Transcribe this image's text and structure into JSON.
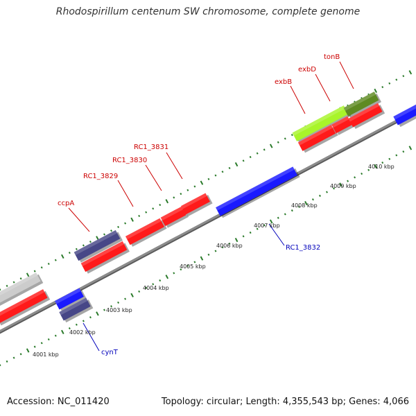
{
  "title": "Rhodospirillum centenum SW chromosome, complete genome",
  "footer": {
    "accession": "Accession: NC_011420",
    "stats": "Topology: circular; Length: 4,355,543 bp; Genes: 4,066"
  },
  "colors": {
    "backbone": "#8c8c8c",
    "tick": "#2a7a2a",
    "forward_label": "#cc0000",
    "reverse_label": "#0000bb",
    "red_feature": "#ff1a1a",
    "blue_feature": "#1a1aff",
    "navy_feature": "#474787",
    "lime_feature": "#a8f52a",
    "olive_feature": "#5e8a22",
    "grey_feature": "#cccccc"
  },
  "scale_labels": [
    {
      "text": "4001 kbp",
      "kbp": 4001
    },
    {
      "text": "4002 kbp",
      "kbp": 4002
    },
    {
      "text": "4003 kbp",
      "kbp": 4003
    },
    {
      "text": "4004 kbp",
      "kbp": 4004
    },
    {
      "text": "4005 kbp",
      "kbp": 4005
    },
    {
      "text": "4006 kbp",
      "kbp": 4006
    },
    {
      "text": "4007 kbp",
      "kbp": 4007
    },
    {
      "text": "4008 kbp",
      "kbp": 4008
    },
    {
      "text": "4009 kbp",
      "kbp": 4009
    },
    {
      "text": "4010 kbp",
      "kbp": 4010
    }
  ],
  "forward_gene_labels": [
    "ccpA",
    "RC1_3829",
    "RC1_3830",
    "RC1_3831",
    "exbB",
    "exbD",
    "tonB"
  ],
  "reverse_gene_labels": [
    "RC1_3832",
    "cynT"
  ]
}
